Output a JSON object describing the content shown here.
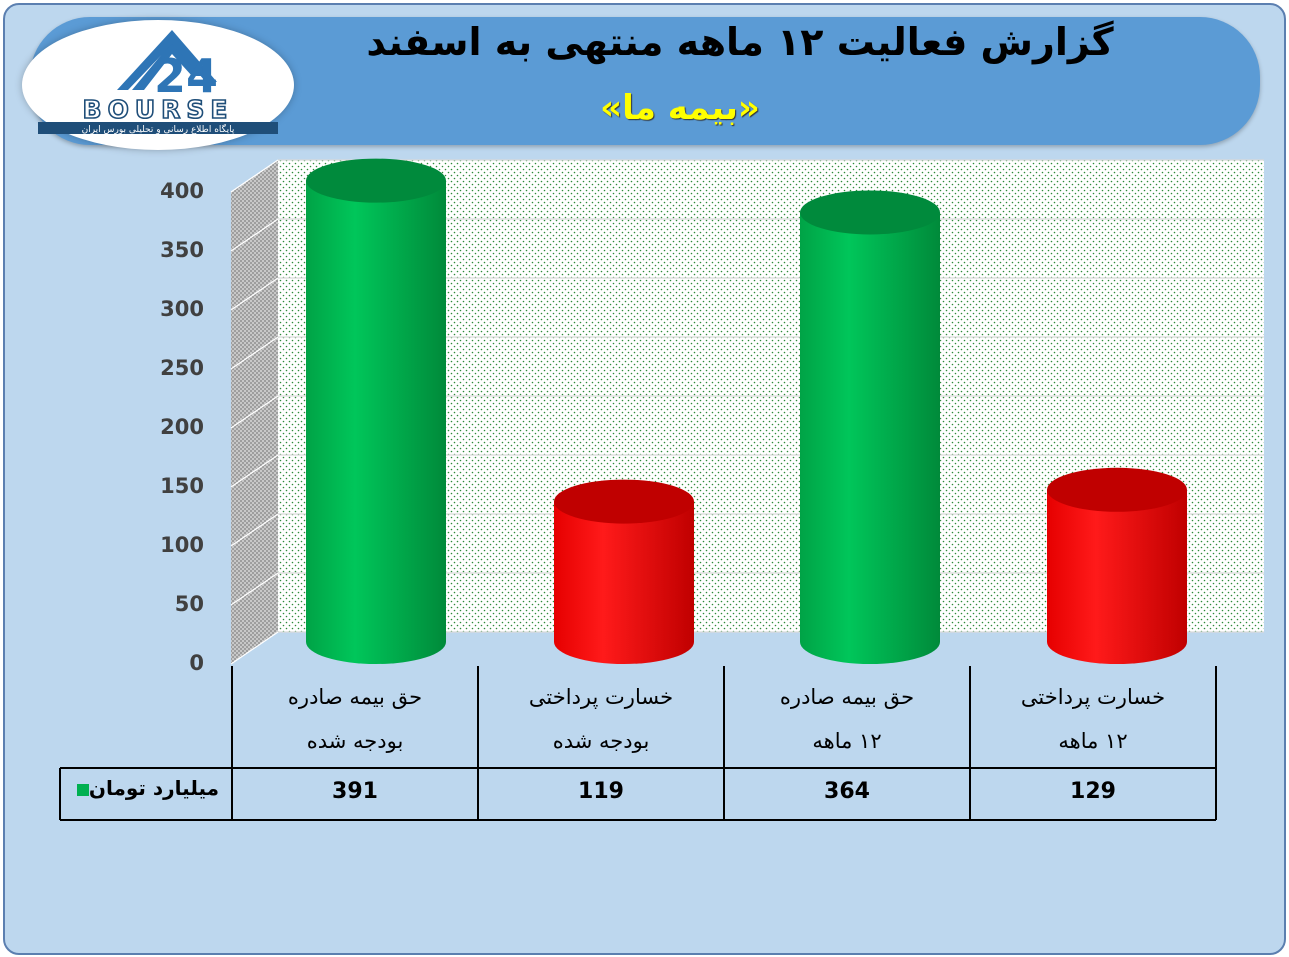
{
  "title": "گزارش فعالیت ۱۲ ماهه منتهی به اسفند",
  "subtitle": "«بیمه ما»",
  "logo": {
    "text": "BOURSE",
    "tagline": "پایگاه اطلاع رسانی و تحلیلی بورس ایران"
  },
  "colors": {
    "green": "#00b050",
    "red": "#ff0000",
    "banner": "#5b9bd5",
    "background": "#bdd7ee"
  },
  "chart_data": {
    "type": "bar",
    "categories": [
      [
        "حق بیمه صادره",
        "بودجه شده"
      ],
      [
        "خسارت پرداختی",
        "بودجه شده"
      ],
      [
        "حق بیمه صادره",
        "۱۲ ماهه"
      ],
      [
        "خسارت پرداختی",
        "۱۲ ماهه"
      ]
    ],
    "series": [
      {
        "name": "میلیارد تومان",
        "values": [
          391,
          119,
          364,
          129
        ],
        "colors": [
          "#00b050",
          "#ff0000",
          "#00b050",
          "#ff0000"
        ]
      }
    ],
    "ylim": [
      0,
      400
    ],
    "yticks": [
      "0",
      "50",
      "100",
      "150",
      "200",
      "250",
      "300",
      "350",
      "400"
    ],
    "grid": true,
    "data_table": true
  }
}
